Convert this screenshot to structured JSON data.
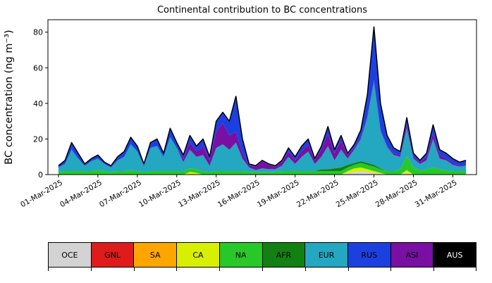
{
  "chart_data": {
    "type": "area",
    "stacked": true,
    "title": "Continental contribution to BC concentrations",
    "xlabel": "",
    "ylabel": "BC concentration (ng m⁻³)",
    "ylim": [
      0,
      87
    ],
    "yticks": [
      0,
      20,
      40,
      60,
      80
    ],
    "x_unit": "days since 01-Mar-2025",
    "grid": false,
    "outline_color": "#000000",
    "x": [
      0,
      0.5,
      1,
      1.5,
      2,
      2.5,
      3,
      3.5,
      4,
      4.5,
      5,
      5.5,
      6,
      6.5,
      7,
      7.5,
      8,
      8.5,
      9,
      9.5,
      10,
      10.5,
      11,
      11.5,
      12,
      12.5,
      13,
      13.5,
      14,
      14.5,
      15,
      15.5,
      16,
      16.5,
      17,
      17.5,
      18,
      18.5,
      19,
      19.5,
      20,
      20.5,
      21,
      21.5,
      22,
      22.5,
      23,
      23.5,
      24,
      24.5,
      25,
      25.5,
      26,
      26.5,
      27,
      27.5,
      28,
      28.5,
      29,
      29.5,
      30,
      30.5,
      31
    ],
    "xtick_positions": [
      0,
      3,
      6,
      9,
      12,
      15,
      18,
      21,
      24,
      27,
      30
    ],
    "xtick_labels": [
      "01-Mar-2025",
      "04-Mar-2025",
      "07-Mar-2025",
      "10-Mar-2025",
      "13-Mar-2025",
      "16-Mar-2025",
      "19-Mar-2025",
      "22-Mar-2025",
      "25-Mar-2025",
      "28-Mar-2025",
      "31-Mar-2025"
    ],
    "series": [
      {
        "name": "OCE",
        "color": "#d3d3d3",
        "values": [
          0,
          0,
          0,
          0,
          0,
          0,
          0,
          0,
          0,
          0,
          0,
          0,
          0,
          0,
          0,
          0,
          0,
          0,
          0,
          0,
          0,
          0,
          0,
          0,
          0,
          0,
          0,
          0,
          0,
          0,
          0,
          0,
          0,
          0,
          0,
          0,
          0,
          0,
          0,
          0,
          0,
          0,
          0,
          0,
          1,
          1.5,
          2,
          1.5,
          1,
          0.5,
          0,
          0,
          0,
          1,
          0,
          0,
          0,
          0,
          0,
          0,
          0,
          0,
          0
        ]
      },
      {
        "name": "GNL",
        "color": "#e01b1b",
        "values": [
          0,
          0,
          0,
          0,
          0,
          0,
          0,
          0,
          0,
          0,
          0,
          0,
          0,
          0,
          0,
          0,
          0,
          0,
          0,
          0,
          0,
          0,
          0,
          0,
          0,
          0,
          0,
          0,
          0,
          0,
          0,
          0,
          0,
          0,
          0,
          0,
          0,
          0,
          0,
          0,
          0,
          0,
          0,
          0,
          0,
          0,
          0,
          0,
          0,
          0,
          0,
          0,
          0,
          0,
          0,
          0,
          0,
          0,
          0,
          0,
          0,
          0,
          0
        ]
      },
      {
        "name": "SA",
        "color": "#ffa500",
        "values": [
          0,
          0,
          0,
          0,
          0,
          0,
          0,
          0,
          0,
          0,
          0,
          0,
          0,
          0,
          0,
          0,
          0,
          0,
          0,
          0,
          0,
          0,
          0,
          0,
          0,
          0,
          0,
          0,
          0,
          0,
          0,
          0,
          0,
          0,
          0,
          0,
          0,
          0,
          0,
          0,
          0,
          0,
          0,
          0,
          0,
          0,
          0,
          0,
          0,
          0,
          0,
          0,
          0,
          0,
          0,
          0,
          0,
          0,
          0,
          0,
          0,
          0,
          0
        ]
      },
      {
        "name": "CA",
        "color": "#d7ef00",
        "values": [
          0,
          0,
          0,
          0,
          0,
          0,
          0,
          0,
          0,
          0,
          0,
          0,
          0,
          0,
          0,
          0,
          0,
          0,
          0,
          0,
          1.5,
          1,
          0,
          0,
          0,
          0,
          0,
          0,
          0,
          0,
          0,
          0,
          0,
          0,
          0,
          0,
          0,
          0,
          0,
          0,
          0,
          0,
          0,
          0,
          1,
          2,
          2,
          1.5,
          1,
          0.5,
          0,
          0,
          0,
          1.5,
          0,
          0,
          0,
          0,
          0,
          0,
          0,
          0,
          0
        ]
      },
      {
        "name": "NA",
        "color": "#28c828",
        "values": [
          1.5,
          2,
          2,
          2,
          2,
          2,
          2.5,
          2,
          1.5,
          2,
          2,
          2.5,
          2,
          1.5,
          2,
          2,
          2,
          2,
          2,
          2,
          2,
          2,
          2,
          1.5,
          2,
          2,
          2,
          2,
          2,
          1.5,
          1.5,
          1.5,
          1.5,
          1.5,
          2,
          2,
          2,
          2,
          2,
          2,
          2,
          2,
          2,
          2,
          2,
          2,
          2.5,
          2.5,
          2.5,
          2,
          2,
          2,
          3,
          8,
          4,
          2.5,
          3,
          4,
          3,
          2.5,
          2,
          2,
          2
        ]
      },
      {
        "name": "AFR",
        "color": "#128012",
        "values": [
          0,
          0,
          0,
          0,
          0,
          0,
          0,
          0,
          0,
          0,
          0,
          0,
          0,
          0,
          0,
          0,
          0,
          0,
          0,
          0,
          0,
          0,
          0,
          0,
          0,
          0,
          0,
          0,
          0,
          0,
          0,
          0,
          0,
          0,
          0,
          0,
          0,
          0,
          0,
          0,
          1,
          1,
          1.5,
          2,
          1.5,
          1,
          1,
          1,
          1,
          0.5,
          0,
          0,
          0,
          0,
          0,
          0,
          0,
          0,
          0,
          0,
          0,
          0,
          0
        ]
      },
      {
        "name": "EUR",
        "color": "#24a7c0",
        "values": [
          2.5,
          4,
          12,
          7,
          3,
          5.5,
          6.5,
          4,
          2.5,
          6,
          8,
          14.5,
          11,
          3.5,
          13,
          14,
          8,
          19,
          13,
          5,
          10.5,
          7,
          9,
          3.5,
          13,
          15,
          12,
          16,
          7,
          2.5,
          1,
          2,
          1.5,
          1.5,
          3,
          8,
          4,
          8,
          11,
          4,
          7,
          13,
          4.5,
          10,
          3.5,
          7.5,
          12.5,
          25.5,
          46.5,
          21,
          13.5,
          9,
          7,
          15.5,
          5,
          3.5,
          5,
          16,
          6,
          5.5,
          3.5,
          2.5,
          3
        ]
      },
      {
        "name": "ASI",
        "color": "#790fa3",
        "values": [
          0,
          0,
          0,
          0,
          0,
          0,
          0,
          0,
          0,
          0,
          0,
          0,
          0,
          0,
          0,
          0,
          0,
          0,
          0,
          2,
          4,
          3,
          5,
          3,
          9,
          12,
          8,
          6,
          3,
          1,
          2,
          4,
          2.5,
          1.5,
          2,
          3,
          2,
          3,
          4,
          2,
          4,
          7,
          4,
          5,
          2,
          1,
          1,
          1,
          1,
          0.5,
          0.5,
          1,
          1,
          2,
          1,
          1,
          2,
          3,
          2,
          1,
          1,
          0.5,
          0.5
        ]
      },
      {
        "name": "RUS",
        "color": "#1c40e0",
        "values": [
          1,
          2,
          4,
          3,
          1,
          1.5,
          2,
          1,
          1,
          2,
          3,
          4,
          3,
          1,
          3,
          4,
          2,
          5,
          3,
          2,
          4,
          3,
          4,
          2,
          6,
          6,
          8,
          20,
          8,
          1,
          0.5,
          0.5,
          0.5,
          0.5,
          1,
          2,
          2,
          3,
          3,
          1,
          2,
          4,
          2,
          3,
          1,
          2,
          4,
          12,
          30,
          15,
          6,
          3,
          2,
          4,
          2,
          1,
          2,
          5,
          3,
          3,
          2.5,
          2,
          2.5
        ]
      },
      {
        "name": "AUS",
        "color": "#000000",
        "values": [
          0,
          0,
          0,
          0,
          0,
          0,
          0,
          0,
          0,
          0,
          0,
          0,
          0,
          0,
          0,
          0,
          0,
          0,
          0,
          0,
          0,
          0,
          0,
          0,
          0,
          0,
          0,
          0,
          0,
          0,
          0,
          0,
          0,
          0,
          0,
          0,
          0,
          0,
          0,
          0,
          0,
          0,
          0,
          0,
          0,
          0,
          0,
          0,
          0,
          0,
          0,
          0,
          0,
          0,
          0,
          0,
          0,
          0,
          0,
          0,
          0,
          0,
          0
        ]
      }
    ],
    "legend_position": "bottom"
  },
  "legend": {
    "items": [
      {
        "label": "OCE",
        "color": "#d3d3d3",
        "text_color": "#000000"
      },
      {
        "label": "GNL",
        "color": "#e01b1b",
        "text_color": "#000000"
      },
      {
        "label": "SA",
        "color": "#ffa500",
        "text_color": "#000000"
      },
      {
        "label": "CA",
        "color": "#d7ef00",
        "text_color": "#000000"
      },
      {
        "label": "NA",
        "color": "#28c828",
        "text_color": "#000000"
      },
      {
        "label": "AFR",
        "color": "#128012",
        "text_color": "#000000"
      },
      {
        "label": "EUR",
        "color": "#24a7c0",
        "text_color": "#000000"
      },
      {
        "label": "RUS",
        "color": "#1c40e0",
        "text_color": "#000000"
      },
      {
        "label": "ASI",
        "color": "#790fa3",
        "text_color": "#000000"
      },
      {
        "label": "AUS",
        "color": "#000000",
        "text_color": "#ffffff"
      }
    ]
  }
}
